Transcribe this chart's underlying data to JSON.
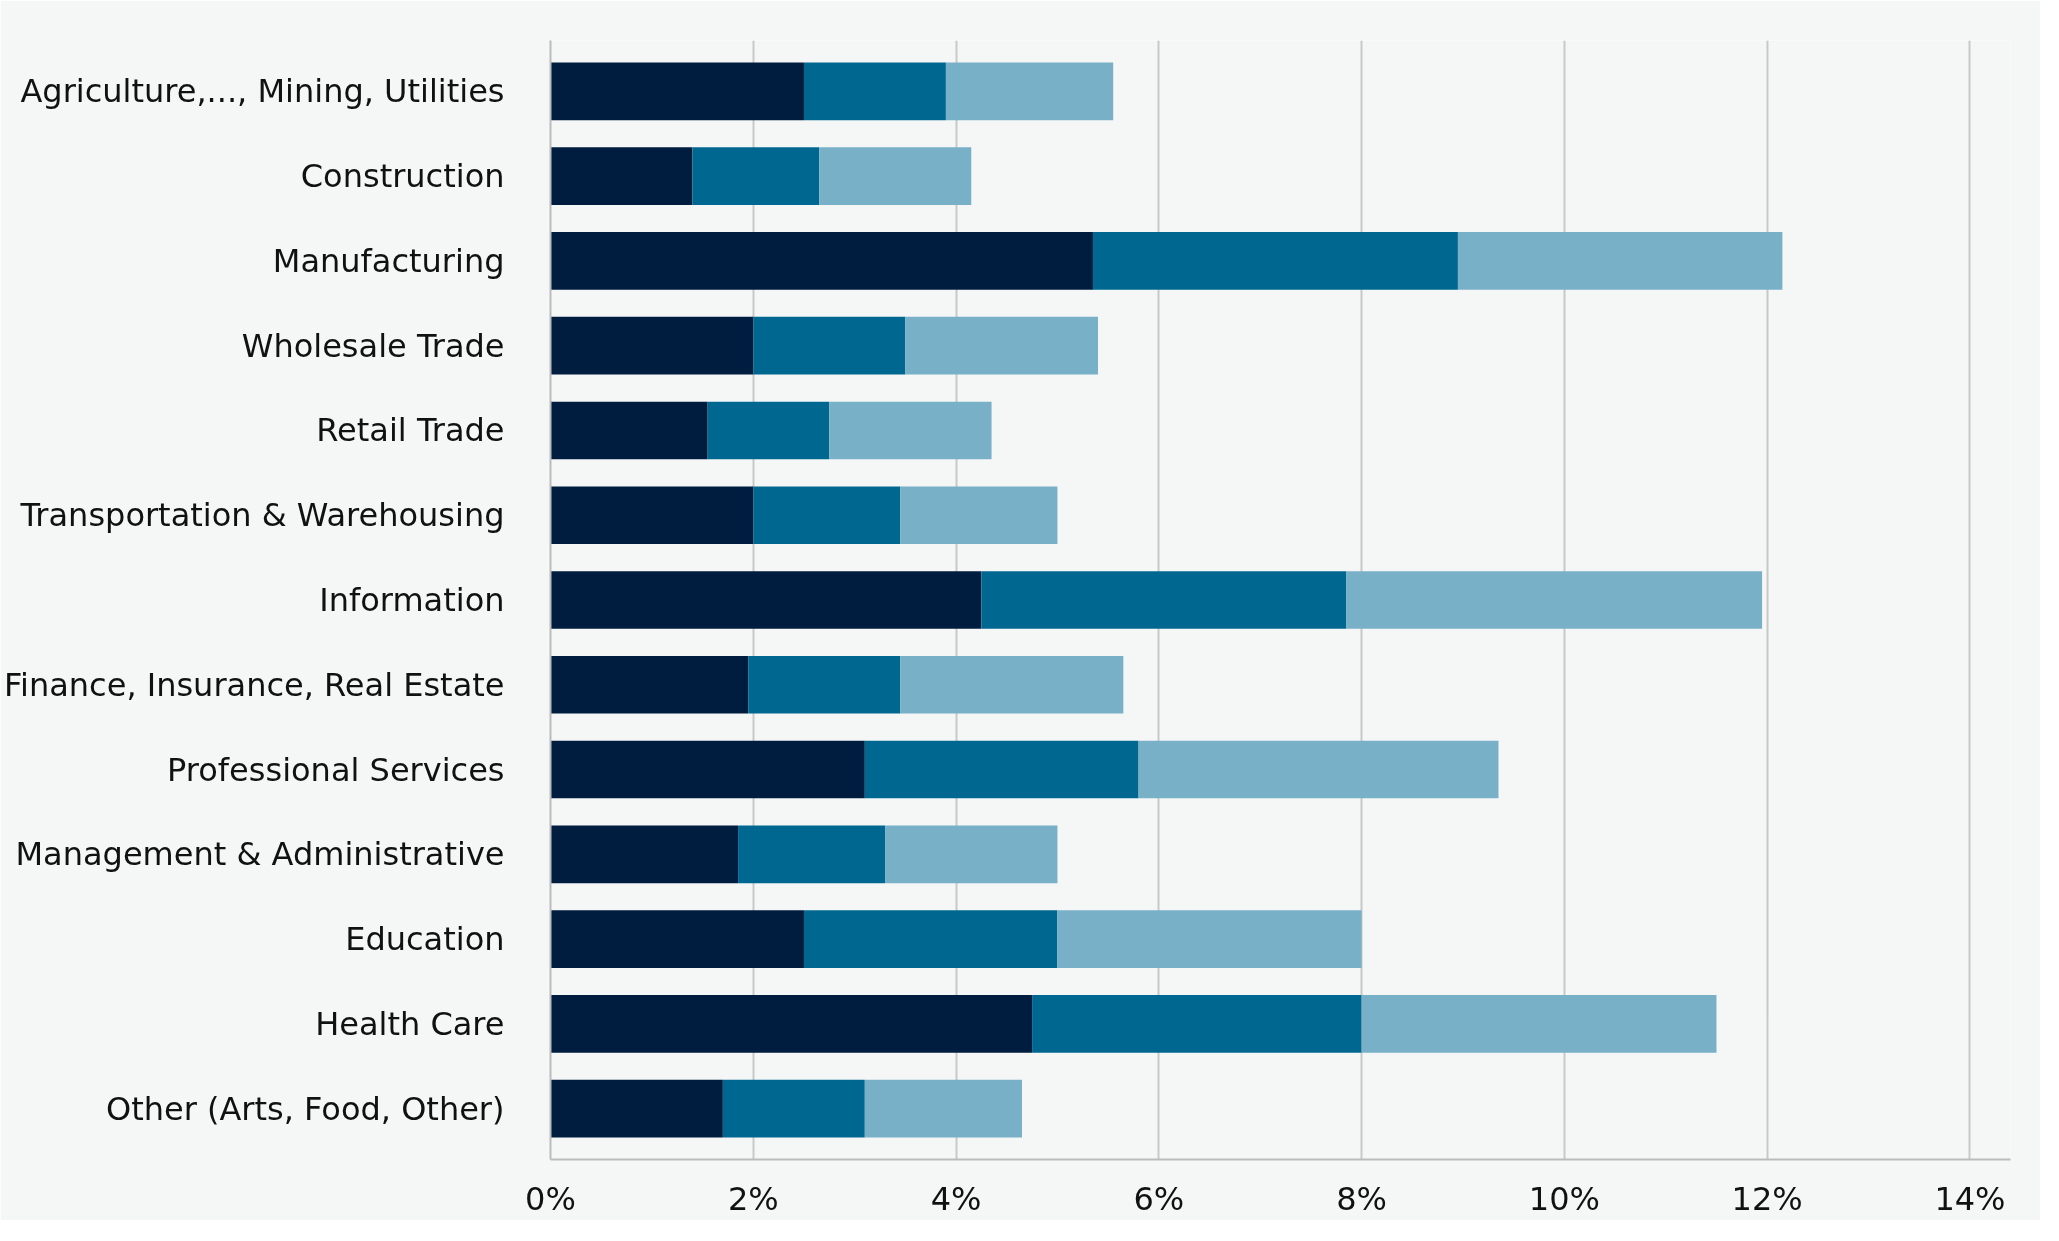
{
  "chart_data": {
    "type": "bar",
    "orientation": "horizontal",
    "stacked": true,
    "categories": [
      "Agriculture,..., Mining, Utilities",
      "Construction",
      "Manufacturing",
      "Wholesale Trade",
      "Retail Trade",
      "Transportation & Warehousing",
      "Information",
      "Finance, Insurance, Real Estate",
      "Professional Services",
      "Management & Administrative",
      "Education",
      "Health Care",
      "Other (Arts, Food, Other)"
    ],
    "series": [
      {
        "color": "#001d3f",
        "values": [
          2.5,
          1.4,
          5.35,
          2.0,
          1.55,
          2.0,
          4.25,
          1.95,
          3.1,
          1.85,
          2.5,
          4.75,
          1.7
        ]
      },
      {
        "color": "#006890",
        "values": [
          1.4,
          1.25,
          3.6,
          1.5,
          1.2,
          1.45,
          3.6,
          1.5,
          2.7,
          1.45,
          2.5,
          3.25,
          1.4
        ]
      },
      {
        "color": "#78b0c8",
        "values": [
          1.65,
          1.5,
          3.2,
          1.9,
          1.6,
          1.55,
          4.1,
          2.2,
          3.55,
          1.7,
          3.0,
          3.5,
          1.55
        ]
      }
    ],
    "xlim": [
      0,
      14.4
    ],
    "xticks": [
      {
        "value": 0,
        "label": "0%"
      },
      {
        "value": 2,
        "label": "2%"
      },
      {
        "value": 4,
        "label": "4%"
      },
      {
        "value": 6,
        "label": "6%"
      },
      {
        "value": 8,
        "label": "8%"
      },
      {
        "value": 10,
        "label": "10%"
      },
      {
        "value": 12,
        "label": "12%"
      },
      {
        "value": 14,
        "label": "14%"
      }
    ],
    "grid": "x"
  }
}
